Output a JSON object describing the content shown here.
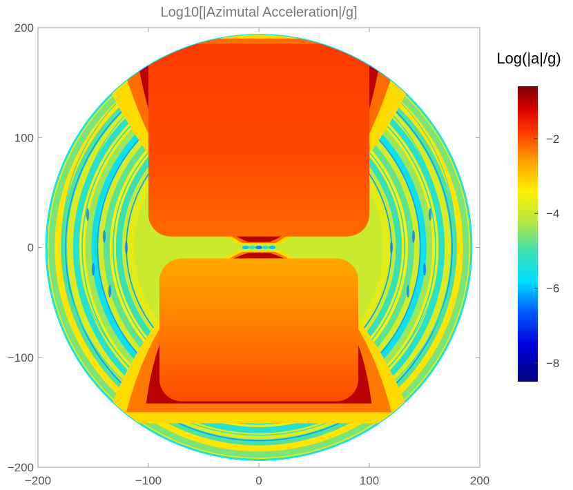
{
  "chart_data": {
    "type": "heatmap",
    "title": "Log10[|Azimutal Acceleration|/g]",
    "xlim": [
      -200,
      200
    ],
    "ylim": [
      -200,
      200
    ],
    "x_ticks": [
      -200,
      -100,
      0,
      100,
      200
    ],
    "y_ticks": [
      -200,
      -100,
      0,
      100,
      200
    ],
    "x_tick_labels": [
      "−200",
      "−100",
      "0",
      "100",
      "200"
    ],
    "y_tick_labels": [
      "−200",
      "−100",
      "0",
      "100",
      "200"
    ],
    "domain_radius": 193,
    "grid": false,
    "legend": {
      "title": "Log(|a|/g)",
      "placement": "right",
      "range": [
        -8.5,
        -0.6
      ],
      "ticks": [
        -2,
        -4,
        -6,
        -8
      ],
      "tick_labels": [
        "−2",
        "−4",
        "−6",
        "−8"
      ]
    },
    "colormap": [
      {
        "value": -8.5,
        "color": "#00007a"
      },
      {
        "value": -7.5,
        "color": "#0000e0"
      },
      {
        "value": -6.6,
        "color": "#0060ff"
      },
      {
        "value": -5.8,
        "color": "#00e0ff"
      },
      {
        "value": -5.0,
        "color": "#40e0b0"
      },
      {
        "value": -4.2,
        "color": "#b8e840"
      },
      {
        "value": -3.4,
        "color": "#ffef00"
      },
      {
        "value": -2.6,
        "color": "#ffa000"
      },
      {
        "value": -1.8,
        "color": "#ff3800"
      },
      {
        "value": -1.2,
        "color": "#d80000"
      },
      {
        "value": -0.6,
        "color": "#7a0000"
      }
    ],
    "regions": [
      {
        "name": "upper-core",
        "x_range": [
          -100,
          100
        ],
        "y_range": [
          10,
          185
        ],
        "value_range": [
          -2.5,
          -1.6
        ]
      },
      {
        "name": "lower-core",
        "x_range": [
          -90,
          90
        ],
        "y_range": [
          -140,
          -10
        ],
        "value_range": [
          -2.5,
          -1.8
        ]
      },
      {
        "name": "core-boundary",
        "value": -1.0
      },
      {
        "name": "outer-rings",
        "r_range": [
          110,
          193
        ],
        "value_range": [
          -5.5,
          -3.0
        ]
      }
    ]
  }
}
